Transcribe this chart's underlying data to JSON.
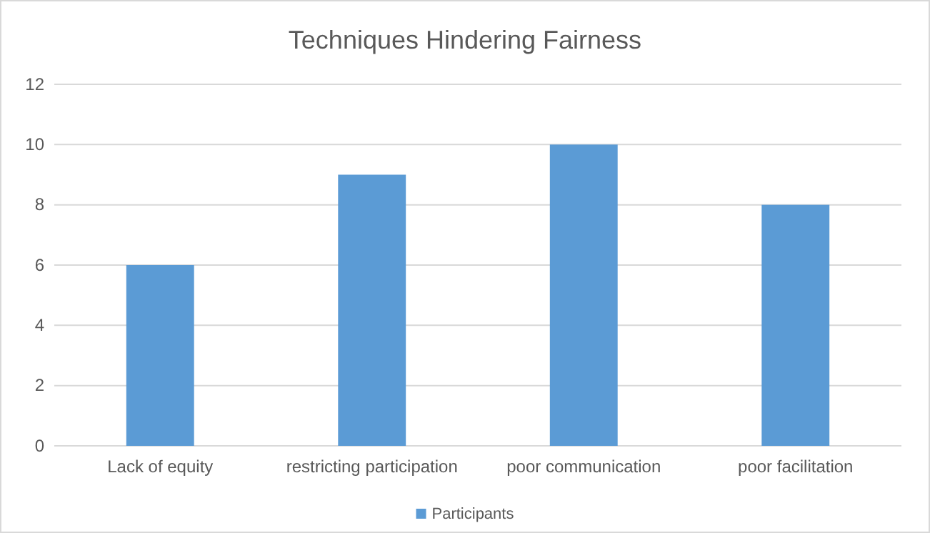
{
  "chart_data": {
    "type": "bar",
    "title": "Techniques Hindering Fairness",
    "categories": [
      "Lack of equity",
      "restricting participation",
      "poor communication",
      "poor facilitation"
    ],
    "series": [
      {
        "name": "Participants",
        "color": "#5b9bd5",
        "values": [
          6,
          9,
          10,
          8
        ]
      }
    ],
    "ylim": [
      0,
      12
    ],
    "yticks": [
      0,
      2,
      4,
      6,
      8,
      10,
      12
    ],
    "grid": "y",
    "legend": "bottom"
  }
}
